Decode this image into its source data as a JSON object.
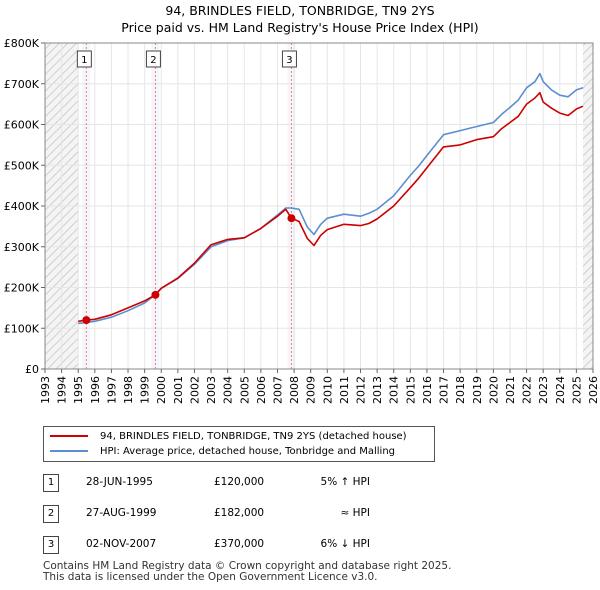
{
  "title": {
    "line1": "94, BRINDLES FIELD, TONBRIDGE, TN9 2YS",
    "line2": "Price paid vs. HM Land Registry's House Price Index (HPI)"
  },
  "colors": {
    "price_line": "#cc0000",
    "hpi_line": "#5b8fd0",
    "sale_marker": "#cc0000",
    "sale_vline": "#ff7777",
    "shade": "#dde6f4"
  },
  "chart_data": {
    "type": "line",
    "title": "94, BRINDLES FIELD, TONBRIDGE, TN9 2YS — Price paid vs. HM Land Registry's House Price Index (HPI)",
    "xlim": [
      1993,
      2026
    ],
    "ylim": [
      0,
      800000
    ],
    "x_ticks": [
      "1993",
      "1994",
      "1995",
      "1996",
      "1997",
      "1998",
      "1999",
      "2000",
      "2001",
      "2002",
      "2003",
      "2004",
      "2005",
      "2006",
      "2007",
      "2008",
      "2009",
      "2010",
      "2011",
      "2012",
      "2013",
      "2014",
      "2015",
      "2016",
      "2017",
      "2018",
      "2019",
      "2020",
      "2021",
      "2022",
      "2023",
      "2024",
      "2025",
      "2026"
    ],
    "y_ticks": [
      {
        "value": 0,
        "label": "£0"
      },
      {
        "value": 100000,
        "label": "£100K"
      },
      {
        "value": 200000,
        "label": "£200K"
      },
      {
        "value": 300000,
        "label": "£300K"
      },
      {
        "value": 400000,
        "label": "£400K"
      },
      {
        "value": 500000,
        "label": "£500K"
      },
      {
        "value": 600000,
        "label": "£600K"
      },
      {
        "value": 700000,
        "label": "£700K"
      },
      {
        "value": 800000,
        "label": "£800K"
      }
    ],
    "grid": true,
    "data_start": 1995.0,
    "data_end": 2025.4,
    "shaded_periods": [
      [
        1995.49,
        1995.49
      ],
      [
        1999.65,
        1999.65
      ],
      [
        2007.84,
        2007.84
      ]
    ],
    "series": [
      {
        "name": "94, BRINDLES FIELD, TONBRIDGE, TN9 2YS (detached house)",
        "x": [
          1995.0,
          1995.49,
          1996.0,
          1997.0,
          1998.0,
          1999.0,
          1999.65,
          2000.0,
          2001.0,
          2002.0,
          2003.0,
          2004.0,
          2005.0,
          2006.0,
          2007.0,
          2007.5,
          2007.84,
          2008.3,
          2008.8,
          2009.2,
          2009.6,
          2010.0,
          2011.0,
          2012.0,
          2012.5,
          2013.0,
          2014.0,
          2015.0,
          2015.5,
          2016.0,
          2017.0,
          2018.0,
          2019.0,
          2020.0,
          2020.5,
          2021.0,
          2021.5,
          2022.0,
          2022.5,
          2022.8,
          2023.0,
          2023.5,
          2024.0,
          2024.5,
          2025.0,
          2025.4
        ],
        "values": [
          117000,
          120000,
          122000,
          133000,
          150000,
          167000,
          182000,
          198000,
          223000,
          260000,
          305000,
          318000,
          322000,
          345000,
          375000,
          392000,
          370000,
          362000,
          320000,
          303000,
          328000,
          342000,
          355000,
          352000,
          357000,
          368000,
          400000,
          445000,
          468000,
          494000,
          545000,
          550000,
          563000,
          570000,
          590000,
          605000,
          620000,
          650000,
          665000,
          678000,
          655000,
          640000,
          628000,
          622000,
          638000,
          645000
        ]
      },
      {
        "name": "HPI: Average price, detached house, Tonbridge and Malling",
        "x": [
          1995.0,
          1995.49,
          1996.0,
          1997.0,
          1998.0,
          1999.0,
          1999.65,
          2000.0,
          2001.0,
          2002.0,
          2003.0,
          2004.0,
          2005.0,
          2006.0,
          2007.0,
          2007.5,
          2007.84,
          2008.3,
          2008.8,
          2009.2,
          2009.6,
          2010.0,
          2011.0,
          2012.0,
          2012.5,
          2013.0,
          2014.0,
          2015.0,
          2015.5,
          2016.0,
          2017.0,
          2018.0,
          2019.0,
          2020.0,
          2020.5,
          2021.0,
          2021.5,
          2022.0,
          2022.5,
          2022.8,
          2023.0,
          2023.5,
          2024.0,
          2024.5,
          2025.0,
          2025.4
        ],
        "values": [
          112000,
          114000,
          117000,
          127000,
          143000,
          162000,
          182000,
          198000,
          222000,
          257000,
          300000,
          315000,
          322000,
          345000,
          378000,
          395000,
          395000,
          392000,
          348000,
          330000,
          355000,
          370000,
          380000,
          375000,
          382000,
          392000,
          425000,
          475000,
          498000,
          524000,
          575000,
          585000,
          595000,
          605000,
          625000,
          642000,
          660000,
          690000,
          705000,
          725000,
          705000,
          685000,
          672000,
          668000,
          685000,
          690000
        ]
      }
    ],
    "sales": [
      {
        "num": "1",
        "x": 1995.49,
        "value": 120000
      },
      {
        "num": "2",
        "x": 1999.65,
        "value": 182000
      },
      {
        "num": "3",
        "x": 2007.84,
        "value": 370000
      }
    ]
  },
  "legend": {
    "price_label": "94, BRINDLES FIELD, TONBRIDGE, TN9 2YS (detached house)",
    "hpi_label": "HPI: Average price, detached house, Tonbridge and Malling"
  },
  "sales_table": [
    {
      "num": "1",
      "date": "28-JUN-1995",
      "price": "£120,000",
      "hpi": "5% ↑ HPI"
    },
    {
      "num": "2",
      "date": "27-AUG-1999",
      "price": "£182,000",
      "hpi": "≈ HPI"
    },
    {
      "num": "3",
      "date": "02-NOV-2007",
      "price": "£370,000",
      "hpi": "6% ↓ HPI"
    }
  ],
  "footer": {
    "line1": "Contains HM Land Registry data © Crown copyright and database right 2025.",
    "line2": "This data is licensed under the Open Government Licence v3.0."
  }
}
